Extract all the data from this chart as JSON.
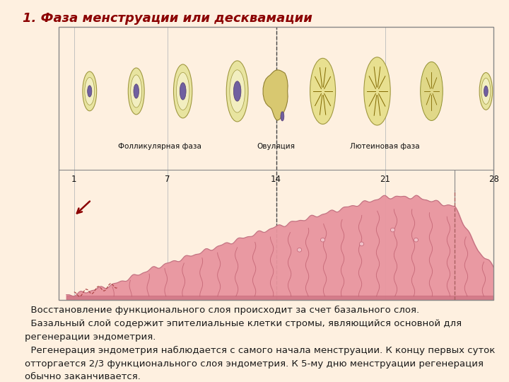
{
  "title": "1. Фаза менструации или десквамации",
  "title_color": "#8B0000",
  "title_fontsize": 13,
  "bg_color": "#FEF0E0",
  "panel_bg": "#F2F2EE",
  "body_text_lines": [
    "  Восстановление функционального слоя происходит за счет базального слоя.",
    "  Базальный слой содержит эпителиальные клетки стромы, являющийся основной для регенерации эндометрия.",
    "  Регенерация эндометрия наблюдается с самого начала менструации. К концу первых суток отторгается 2/3 функционального слоя эндометрия. К 5-му дню менструации регенерация обычно заканчивается."
  ],
  "text_color": "#1a1a1a",
  "text_fontsize": 9.5,
  "endometrium_color": "#E8959F",
  "endometrium_edge": "#C06070",
  "basal_color": "#CC7080",
  "arrow_color": "#8B0000",
  "follicle_outer": "#E8E4A0",
  "follicle_border": "#A09840",
  "follicle_inner": "#7060A0",
  "follicle_inner_border": "#503870",
  "luteal_fill": "#E8E090",
  "luteal_line": "#806800"
}
